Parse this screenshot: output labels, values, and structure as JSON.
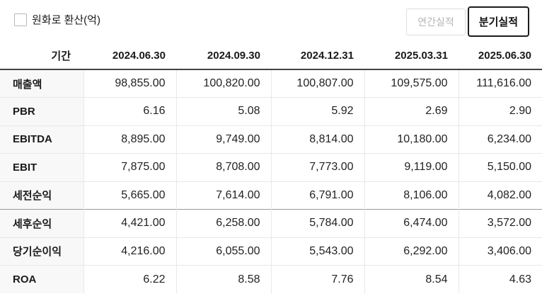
{
  "toolbar": {
    "checkbox_label": "원화로 환산(억)",
    "checkbox_checked": false,
    "buttons": [
      {
        "label": "연간실적",
        "active": false
      },
      {
        "label": "분기실적",
        "active": true
      }
    ]
  },
  "table": {
    "period_header": "기간",
    "columns": [
      "2024.06.30",
      "2024.09.30",
      "2024.12.31",
      "2025.03.31",
      "2025.06.30"
    ],
    "rows": [
      {
        "label": "매출액",
        "values": [
          "98,855.00",
          "100,820.00",
          "100,807.00",
          "109,575.00",
          "111,616.00"
        ]
      },
      {
        "label": "PBR",
        "values": [
          "6.16",
          "5.08",
          "5.92",
          "2.69",
          "2.90"
        ]
      },
      {
        "label": "EBITDA",
        "values": [
          "8,895.00",
          "9,749.00",
          "8,814.00",
          "10,180.00",
          "6,234.00"
        ]
      },
      {
        "label": "EBIT",
        "values": [
          "7,875.00",
          "8,708.00",
          "7,773.00",
          "9,119.00",
          "5,150.00"
        ]
      },
      {
        "label": "세전순익",
        "values": [
          "5,665.00",
          "7,614.00",
          "6,791.00",
          "8,106.00",
          "4,082.00"
        ]
      },
      {
        "label": "세후순익",
        "section_break": true,
        "values": [
          "4,421.00",
          "6,258.00",
          "5,784.00",
          "6,474.00",
          "3,572.00"
        ]
      },
      {
        "label": "당기순이익",
        "values": [
          "4,216.00",
          "6,055.00",
          "5,543.00",
          "6,292.00",
          "3,406.00"
        ]
      },
      {
        "label": "ROA",
        "values": [
          "6.22",
          "8.58",
          "7.76",
          "8.54",
          "4.63"
        ]
      }
    ]
  },
  "colors": {
    "active_button_border": "#1c1c1c",
    "inactive_button_text": "#b5b5b5",
    "label_column_bg": "#f8f8f8",
    "row_border": "#e8e8e8",
    "section_border": "#999999",
    "table_top_border": "#444444"
  }
}
